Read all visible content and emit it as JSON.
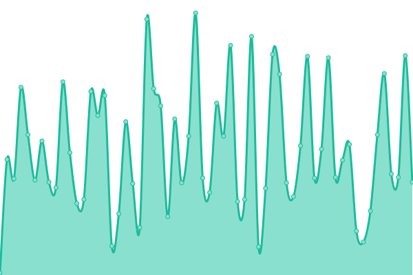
{
  "chart_data": {
    "type": "area",
    "title": "",
    "xlabel": "",
    "ylabel": "",
    "grid": false,
    "legend": "none",
    "ylim": [
      0,
      400
    ],
    "x": [
      0,
      1,
      2,
      3,
      4,
      5,
      6,
      7,
      8,
      9,
      10,
      11,
      12,
      13,
      14,
      15,
      16,
      17,
      18,
      19,
      20,
      21,
      22,
      23,
      24,
      25,
      26,
      27,
      28,
      29,
      30,
      31,
      32,
      33,
      34,
      35,
      36,
      37,
      38,
      39,
      40,
      41,
      42,
      43,
      44,
      45,
      46,
      47,
      48,
      49,
      50,
      51,
      52,
      53,
      54,
      55,
      56,
      57,
      58,
      59
    ],
    "values": [
      3,
      168,
      140,
      273,
      204,
      138,
      195,
      135,
      127,
      281,
      178,
      104,
      110,
      267,
      232,
      261,
      42,
      89,
      223,
      133,
      69,
      372,
      271,
      246,
      85,
      227,
      134,
      202,
      381,
      141,
      120,
      250,
      202,
      334,
      107,
      110,
      347,
      41,
      126,
      321,
      292,
      134,
      114,
      188,
      318,
      141,
      183,
      316,
      142,
      167,
      190,
      64,
      48,
      93,
      204,
      293,
      147,
      142,
      319,
      135
    ],
    "colors": {
      "line": "#1abc9c",
      "fill": "#8ae0cf",
      "marker_fill": "#8ae0cf"
    }
  }
}
